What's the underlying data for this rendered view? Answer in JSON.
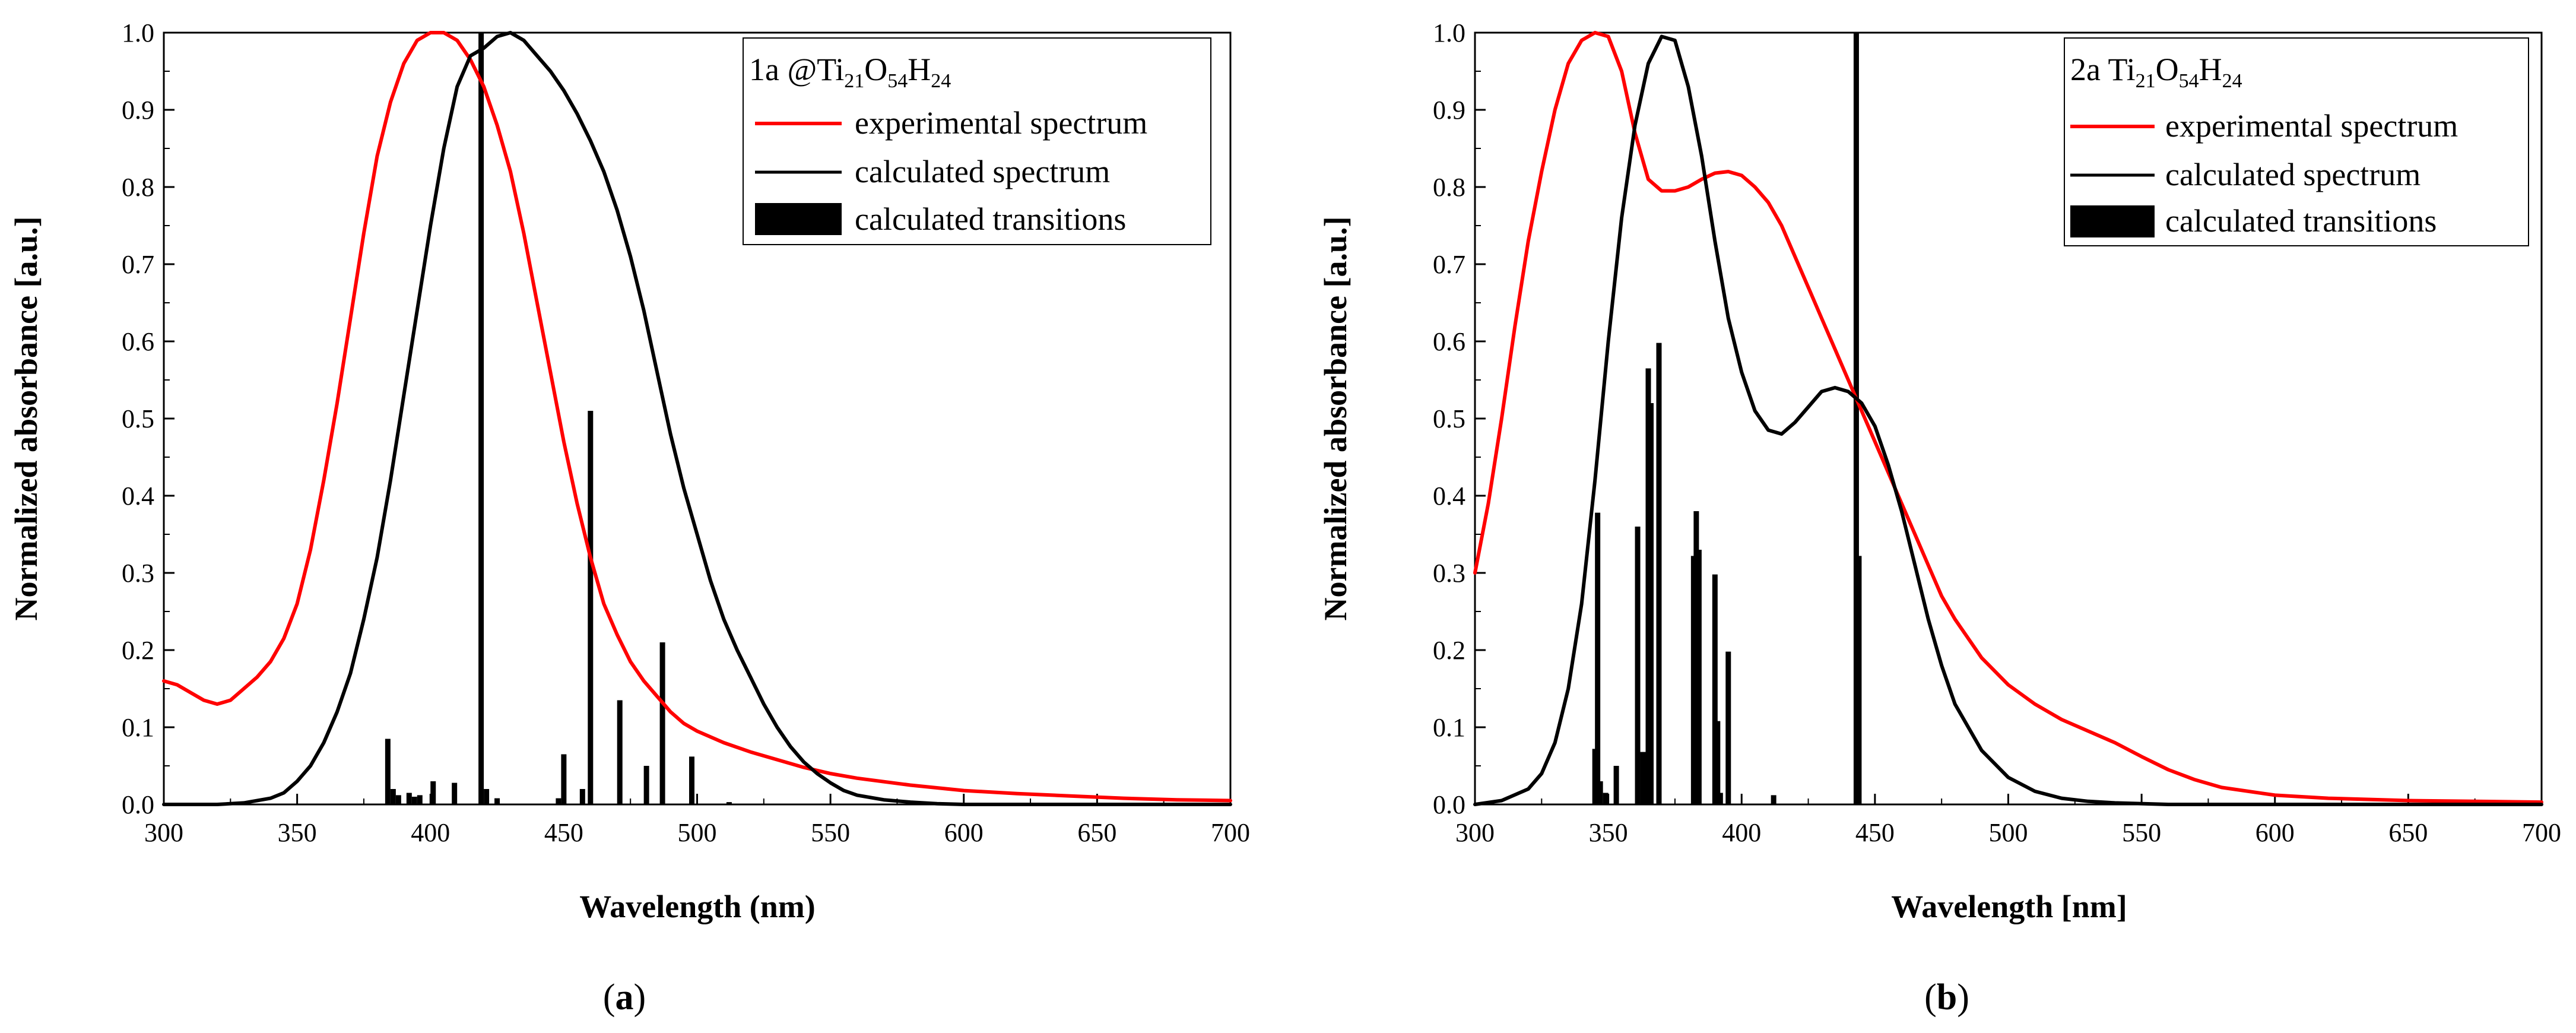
{
  "chart_data": [
    {
      "type": "line",
      "panel_label": "(a)",
      "panel_letter": "a",
      "xlabel": "Wavelength (nm)",
      "ylabel": "Normalized absorbance [a.u.]",
      "xlim": [
        300,
        700
      ],
      "ylim": [
        0,
        1.0
      ],
      "xticks": [
        "300",
        "350",
        "400",
        "450",
        "500",
        "550",
        "600",
        "650",
        "700"
      ],
      "yticks": [
        "0.0",
        "0.1",
        "0.2",
        "0.3",
        "0.4",
        "0.5",
        "0.6",
        "0.7",
        "0.8",
        "0.9",
        "1.0"
      ],
      "legend": {
        "title_prefix": "1a @Ti",
        "title_sub1": "21",
        "title_mid1": "O",
        "title_sub2": "54",
        "title_mid2": "H",
        "title_sub3": "24",
        "entries": [
          "experimental spectrum",
          "calculated spectrum",
          "calculated transitions"
        ],
        "position": "top-right"
      },
      "series": [
        {
          "name": "experimental spectrum",
          "color": "#ff0000",
          "x": [
            300,
            305,
            310,
            315,
            320,
            325,
            330,
            335,
            340,
            345,
            350,
            355,
            360,
            365,
            370,
            375,
            380,
            385,
            390,
            395,
            400,
            405,
            410,
            415,
            420,
            425,
            430,
            435,
            440,
            445,
            450,
            455,
            460,
            465,
            470,
            475,
            480,
            485,
            490,
            495,
            500,
            510,
            520,
            530,
            540,
            550,
            560,
            580,
            600,
            620,
            640,
            660,
            680,
            700
          ],
          "y": [
            0.16,
            0.155,
            0.145,
            0.135,
            0.13,
            0.135,
            0.15,
            0.165,
            0.185,
            0.215,
            0.26,
            0.33,
            0.42,
            0.52,
            0.63,
            0.74,
            0.84,
            0.91,
            0.96,
            0.99,
            1.0,
            1.0,
            0.99,
            0.965,
            0.93,
            0.88,
            0.82,
            0.74,
            0.65,
            0.56,
            0.47,
            0.39,
            0.32,
            0.26,
            0.22,
            0.185,
            0.16,
            0.14,
            0.12,
            0.105,
            0.095,
            0.08,
            0.068,
            0.058,
            0.048,
            0.04,
            0.034,
            0.025,
            0.018,
            0.014,
            0.011,
            0.008,
            0.006,
            0.005
          ]
        },
        {
          "name": "calculated spectrum",
          "color": "#000000",
          "x": [
            300,
            320,
            330,
            340,
            345,
            350,
            355,
            360,
            365,
            370,
            375,
            380,
            385,
            390,
            395,
            400,
            405,
            410,
            415,
            420,
            425,
            430,
            435,
            440,
            445,
            450,
            455,
            460,
            465,
            470,
            475,
            480,
            485,
            490,
            495,
            500,
            505,
            510,
            515,
            520,
            525,
            530,
            535,
            540,
            545,
            550,
            555,
            560,
            570,
            580,
            590,
            600,
            620,
            700
          ],
          "y": [
            0.0,
            0.0,
            0.002,
            0.008,
            0.015,
            0.03,
            0.05,
            0.08,
            0.12,
            0.17,
            0.24,
            0.32,
            0.42,
            0.53,
            0.64,
            0.75,
            0.85,
            0.93,
            0.97,
            0.98,
            0.995,
            1.0,
            0.99,
            0.97,
            0.95,
            0.925,
            0.895,
            0.86,
            0.82,
            0.77,
            0.71,
            0.64,
            0.56,
            0.48,
            0.41,
            0.35,
            0.29,
            0.24,
            0.2,
            0.165,
            0.13,
            0.1,
            0.075,
            0.055,
            0.04,
            0.028,
            0.018,
            0.012,
            0.006,
            0.003,
            0.001,
            0.0,
            0.0,
            0.0
          ]
        }
      ],
      "transitions": {
        "name": "calculated transitions",
        "x": [
          384,
          386,
          388,
          392,
          394,
          396,
          401,
          409,
          419,
          421,
          425,
          448,
          450,
          457,
          460,
          471,
          481,
          487,
          498,
          512
        ],
        "y": [
          0.085,
          0.02,
          0.012,
          0.015,
          0.01,
          0.012,
          0.03,
          0.028,
          1.0,
          0.02,
          0.008,
          0.008,
          0.065,
          0.02,
          0.51,
          0.135,
          0.05,
          0.21,
          0.062,
          0.003
        ]
      }
    },
    {
      "type": "line",
      "panel_label": "(b)",
      "panel_letter": "b",
      "xlabel": "Wavelength [nm]",
      "ylabel": "Normalized absorbance [a.u.]",
      "xlim": [
        300,
        700
      ],
      "ylim": [
        0,
        1.0
      ],
      "xticks": [
        "300",
        "350",
        "400",
        "450",
        "500",
        "550",
        "600",
        "650",
        "700"
      ],
      "yticks": [
        "0.0",
        "0.1",
        "0.2",
        "0.3",
        "0.4",
        "0.5",
        "0.6",
        "0.7",
        "0.8",
        "0.9",
        "1.0"
      ],
      "legend": {
        "title_prefix": "2a Ti",
        "title_sub1": "21",
        "title_mid1": "O",
        "title_sub2": "54",
        "title_mid2": "H",
        "title_sub3": "24",
        "entries": [
          "experimental spectrum",
          "calculated spectrum",
          "calculated transitions"
        ],
        "position": "top-right"
      },
      "series": [
        {
          "name": "experimental spectrum",
          "color": "#ff0000",
          "x": [
            300,
            305,
            310,
            315,
            320,
            325,
            330,
            335,
            340,
            345,
            350,
            355,
            360,
            365,
            370,
            375,
            380,
            385,
            390,
            395,
            400,
            405,
            410,
            415,
            420,
            425,
            430,
            435,
            440,
            445,
            450,
            455,
            460,
            465,
            470,
            475,
            480,
            490,
            500,
            510,
            520,
            530,
            540,
            550,
            560,
            570,
            580,
            600,
            620,
            650,
            700
          ],
          "y": [
            0.3,
            0.39,
            0.5,
            0.62,
            0.73,
            0.82,
            0.9,
            0.96,
            0.99,
            1.0,
            0.995,
            0.95,
            0.87,
            0.81,
            0.795,
            0.795,
            0.8,
            0.81,
            0.818,
            0.82,
            0.815,
            0.8,
            0.78,
            0.75,
            0.71,
            0.67,
            0.63,
            0.59,
            0.55,
            0.51,
            0.47,
            0.43,
            0.39,
            0.35,
            0.31,
            0.27,
            0.24,
            0.19,
            0.155,
            0.13,
            0.11,
            0.095,
            0.08,
            0.062,
            0.045,
            0.032,
            0.022,
            0.012,
            0.008,
            0.005,
            0.003
          ]
        },
        {
          "name": "calculated spectrum",
          "color": "#000000",
          "x": [
            300,
            310,
            320,
            325,
            330,
            335,
            340,
            345,
            350,
            355,
            360,
            365,
            370,
            375,
            380,
            385,
            390,
            395,
            400,
            405,
            410,
            415,
            420,
            425,
            430,
            435,
            440,
            445,
            450,
            455,
            460,
            465,
            470,
            475,
            480,
            490,
            500,
            510,
            520,
            530,
            540,
            560,
            600,
            700
          ],
          "y": [
            0.0,
            0.005,
            0.02,
            0.04,
            0.08,
            0.15,
            0.26,
            0.42,
            0.6,
            0.76,
            0.88,
            0.96,
            0.995,
            0.99,
            0.93,
            0.84,
            0.73,
            0.63,
            0.56,
            0.51,
            0.485,
            0.48,
            0.495,
            0.515,
            0.535,
            0.54,
            0.535,
            0.52,
            0.49,
            0.44,
            0.38,
            0.31,
            0.24,
            0.18,
            0.13,
            0.07,
            0.035,
            0.017,
            0.008,
            0.004,
            0.002,
            0.0,
            0.0,
            0.0
          ]
        }
      ],
      "transitions": {
        "name": "calculated transitions",
        "x": [
          345,
          346,
          347,
          349,
          353,
          361,
          363,
          364,
          365,
          366,
          369,
          382,
          383,
          384,
          390,
          391,
          392,
          395,
          412,
          443,
          444
        ],
        "y": [
          0.072,
          0.378,
          0.03,
          0.015,
          0.05,
          0.36,
          0.068,
          0.063,
          0.565,
          0.52,
          0.598,
          0.322,
          0.38,
          0.33,
          0.298,
          0.108,
          0.015,
          0.198,
          0.012,
          1.0,
          0.322
        ]
      }
    }
  ]
}
